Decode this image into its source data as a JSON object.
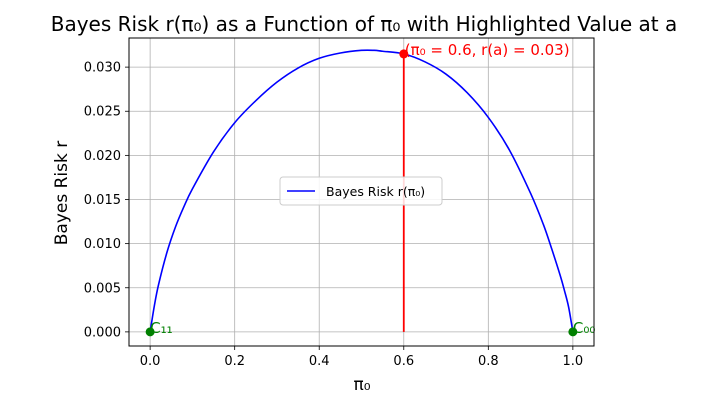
{
  "chart_data": {
    "type": "line",
    "title": "Bayes Risk r(π₀) as a Function of π₀ with Highlighted Value at a",
    "xlabel": "π₀",
    "ylabel": "Bayes Risk r",
    "xlim": [
      -0.05,
      1.05
    ],
    "ylim": [
      -0.0016,
      0.0333
    ],
    "x_ticks": [
      "0.0",
      "0.2",
      "0.4",
      "0.6",
      "0.8",
      "1.0"
    ],
    "y_ticks": [
      "0.000",
      "0.005",
      "0.010",
      "0.015",
      "0.020",
      "0.025",
      "0.030"
    ],
    "grid": true,
    "legend": {
      "placement": "center",
      "entries": [
        "Bayes Risk r(π₀)"
      ]
    },
    "series": [
      {
        "name": "Bayes Risk r(π₀)",
        "color": "#0000ff",
        "x": [
          0.0,
          0.01,
          0.02,
          0.04,
          0.06,
          0.08,
          0.1,
          0.15,
          0.2,
          0.25,
          0.3,
          0.35,
          0.4,
          0.45,
          0.5,
          0.53,
          0.55,
          0.6,
          0.65,
          0.7,
          0.75,
          0.8,
          0.85,
          0.9,
          0.93,
          0.95,
          0.97,
          0.98,
          0.99,
          1.0
        ],
        "y": [
          0.0,
          0.00296,
          0.00537,
          0.00905,
          0.0119,
          0.0142,
          0.0162,
          0.0204,
          0.0237,
          0.0262,
          0.0283,
          0.0299,
          0.031,
          0.0316,
          0.0319,
          0.0319,
          0.0318,
          0.0315,
          0.0306,
          0.0292,
          0.0271,
          0.0243,
          0.0206,
          0.0157,
          0.0122,
          0.0094,
          0.0064,
          0.0047,
          0.0028,
          0.0
        ]
      }
    ],
    "highlight": {
      "x": 0.6,
      "y": 0.0315,
      "label": "(π₀ = 0.6, r(a) = 0.03)",
      "color": "#ff0000"
    },
    "endpoints": [
      {
        "x": 0.0,
        "y": 0.0,
        "label": "C₁₁",
        "color": "#008000"
      },
      {
        "x": 1.0,
        "y": 0.0,
        "label": "C₀₀",
        "color": "#008000"
      }
    ]
  }
}
